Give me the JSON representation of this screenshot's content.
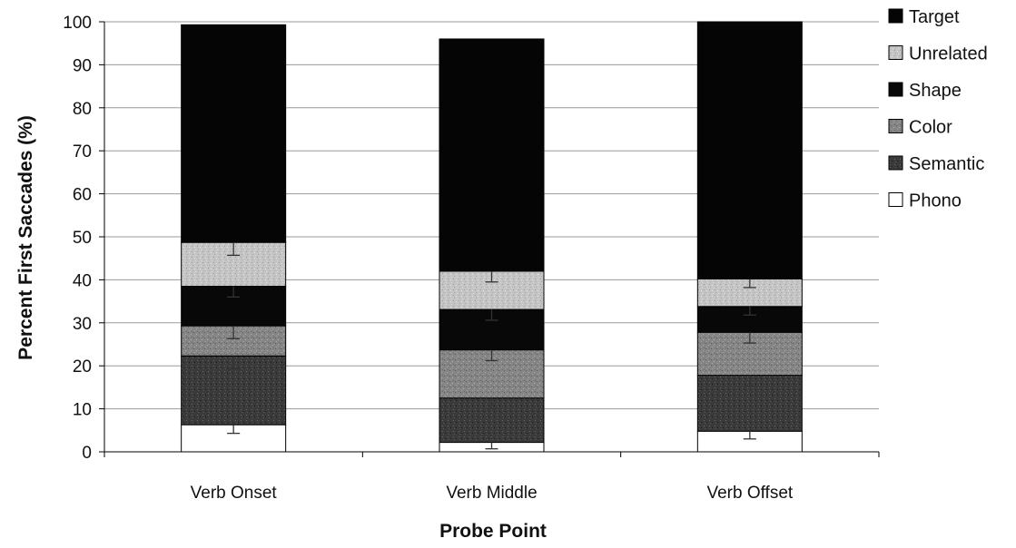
{
  "chart_data": {
    "type": "bar",
    "stacked": true,
    "title": "",
    "xlabel": "Probe Point",
    "ylabel": "Percent First Saccades (%)",
    "ylim": [
      0,
      100
    ],
    "yticks": [
      0,
      10,
      20,
      30,
      40,
      50,
      60,
      70,
      80,
      90,
      100
    ],
    "grid": true,
    "legend_position": "right",
    "categories": [
      "Verb Onset",
      "Verb Middle",
      "Verb Offset"
    ],
    "series": [
      {
        "name": "Phono",
        "values": [
          6.3,
          2.2,
          4.8
        ],
        "error": [
          2,
          1.5,
          1.8
        ],
        "color": "#ffffff",
        "pattern": "none"
      },
      {
        "name": "Semantic",
        "values": [
          16,
          10.3,
          13
        ],
        "error": [
          3,
          2.5,
          2.5
        ],
        "color": "#3a3a3a",
        "pattern": "dark-speckle"
      },
      {
        "name": "Color",
        "values": [
          7,
          11.2,
          10
        ],
        "error": [
          3,
          2.5,
          2.5
        ],
        "color": "#858585",
        "pattern": "mid-speckle"
      },
      {
        "name": "Shape",
        "values": [
          9.2,
          9.4,
          6
        ],
        "error": [
          2.5,
          2.5,
          2
        ],
        "color": "#080808",
        "pattern": "none"
      },
      {
        "name": "Unrelated",
        "values": [
          10.2,
          8.9,
          6.4
        ],
        "error": [
          3,
          2.5,
          2
        ],
        "color": "#c4c4c4",
        "pattern": "light-speckle"
      },
      {
        "name": "Target",
        "values": [
          50.6,
          54,
          59.8
        ],
        "error": [
          0,
          0,
          0
        ],
        "color": "#050505",
        "pattern": "none"
      }
    ],
    "legend_order": [
      "Target",
      "Unrelated",
      "Shape",
      "Color",
      "Semantic",
      "Phono"
    ]
  }
}
